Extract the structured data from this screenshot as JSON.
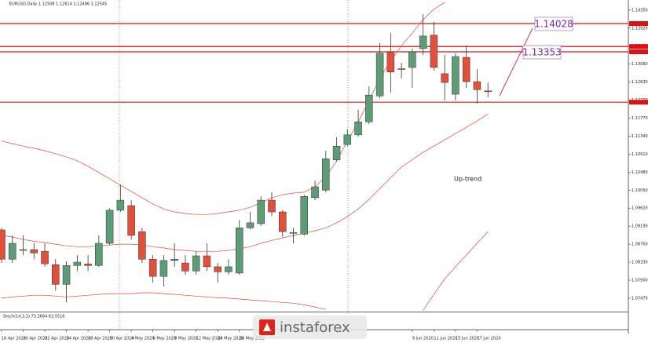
{
  "chart_data": {
    "type": "candlestick",
    "title": "EURUSD,Daily 1.12508 1.12614 1.12496 1.12545",
    "categories": [
      "16 Apr 2020",
      null,
      "20 Apr 2020",
      null,
      "22 Apr 2020",
      null,
      "24 Apr 2020",
      null,
      "28 Apr 2020",
      null,
      "30 Apr 2020",
      null,
      "4 May 2020",
      null,
      "6 May 2020",
      null,
      "8 May 2020",
      null,
      "12 May 2020",
      null,
      "14 May 2020",
      null,
      "18 May 2020",
      null,
      null,
      null,
      null,
      null,
      null,
      null,
      null,
      null,
      null,
      null,
      null,
      null,
      null,
      null,
      "9 Jun 2020",
      null,
      "11 Jun 2020",
      null,
      "15 Jun 2020",
      null,
      "17 Jun 2020",
      null
    ],
    "open": [
      1.091,
      1.084,
      1.0863,
      1.0863,
      1.0859,
      1.0827,
      1.078,
      1.0825,
      1.0829,
      1.0825,
      1.0878,
      1.0957,
      1.0968,
      1.0906,
      1.084,
      1.0799,
      1.0837,
      1.0831,
      1.0812,
      1.0848,
      1.0822,
      1.081,
      1.0807,
      1.0915,
      1.0925,
      1.0981,
      1.0953,
      1.0902,
      1.09,
      1.0987,
      1.1005,
      1.1077,
      1.1114,
      1.1137,
      1.1168,
      1.123,
      1.1335,
      1.1294,
      1.1298,
      1.1343,
      1.1375,
      1.1283,
      1.1234,
      1.1322,
      1.1264,
      1.1242
    ],
    "high": [
      1.0915,
      1.0897,
      1.0897,
      1.0878,
      1.0878,
      1.084,
      1.0835,
      1.085,
      1.085,
      1.0897,
      1.0962,
      1.1018,
      1.0981,
      1.0915,
      1.085,
      1.085,
      1.0878,
      1.085,
      1.0859,
      1.0878,
      1.0831,
      1.084,
      1.0934,
      1.0953,
      1.099,
      1.1,
      1.0957,
      1.0915,
      1.0994,
      1.1028,
      1.1099,
      1.1131,
      1.115,
      1.1197,
      1.1253,
      1.1356,
      1.138,
      1.1309,
      1.1343,
      1.1425,
      1.1407,
      1.1328,
      1.1332,
      1.135,
      1.1294,
      1.1262
    ],
    "low": [
      1.0831,
      1.0831,
      1.085,
      1.084,
      1.0822,
      1.0765,
      1.0737,
      1.0812,
      1.0812,
      1.0822,
      1.0874,
      1.0953,
      1.0887,
      1.0831,
      1.0784,
      1.0775,
      1.0822,
      1.0803,
      1.0803,
      1.0812,
      1.0784,
      1.0803,
      1.0803,
      1.0912,
      1.0919,
      1.0943,
      1.0893,
      1.0878,
      1.0897,
      1.0981,
      1.1,
      1.1073,
      1.111,
      1.1133,
      1.1163,
      1.1225,
      1.1238,
      1.1272,
      1.1249,
      1.1328,
      1.129,
      1.1219,
      1.1219,
      1.1249,
      1.1212,
      1.1227
    ],
    "close": [
      1.084,
      1.0878,
      1.0863,
      1.0855,
      1.0829,
      1.078,
      1.0825,
      1.0833,
      1.0825,
      1.0878,
      1.0957,
      1.0981,
      1.0897,
      1.084,
      1.0799,
      1.0837,
      1.084,
      1.0812,
      1.0848,
      1.0822,
      1.081,
      1.0822,
      1.0915,
      1.0927,
      1.0981,
      1.0953,
      1.0906,
      1.0904,
      1.099,
      1.1013,
      1.108,
      1.111,
      1.1137,
      1.1168,
      1.1232,
      1.1332,
      1.1287,
      1.1295,
      1.1335,
      1.1373,
      1.1298,
      1.1262,
      1.1324,
      1.1264,
      1.1245,
      1.124
    ],
    "up_color": "#5e9c76",
    "down_color": "#e2503c",
    "band_color": "#e8473a",
    "upper_band": [
      1.1122,
      1.1116,
      1.111,
      1.1105,
      1.1099,
      1.1092,
      1.1084,
      1.1075,
      1.1062,
      1.1047,
      1.1032,
      1.1017,
      1.1002,
      1.0987,
      1.0972,
      1.096,
      1.0953,
      1.0949,
      1.0947,
      1.0947,
      1.0949,
      1.0953,
      1.0957,
      1.0964,
      1.0975,
      1.0987,
      1.0994,
      1.0998,
      1.1,
      1.1013,
      1.1037,
      1.1075,
      1.1122,
      1.1168,
      1.1219,
      1.1272,
      1.1313,
      1.135,
      1.138,
      1.1412,
      1.1437,
      1.1453,
      null,
      null,
      null,
      null
    ],
    "middle_band": [
      1.0897,
      1.0893,
      1.0887,
      1.0883,
      1.088,
      1.0876,
      1.0872,
      1.087,
      1.087,
      1.0872,
      1.0874,
      1.0876,
      1.0876,
      1.0874,
      1.087,
      1.0867,
      1.0863,
      1.0861,
      1.0859,
      1.0859,
      1.0859,
      1.0861,
      1.0865,
      1.087,
      1.0878,
      1.0885,
      1.0891,
      1.0897,
      1.0902,
      1.0908,
      1.0915,
      1.0927,
      1.0942,
      1.096,
      1.0983,
      1.1009,
      1.1035,
      1.106,
      1.1078,
      1.1095,
      1.111,
      1.1125,
      1.114,
      1.1155,
      1.117,
      1.1187
    ],
    "lower_band": [
      1.0747,
      1.075,
      1.0752,
      1.0754,
      1.0754,
      1.0752,
      1.075,
      1.0752,
      1.0754,
      1.0756,
      1.0758,
      1.0758,
      1.0758,
      1.076,
      1.076,
      1.0758,
      1.0756,
      1.0754,
      1.0752,
      1.075,
      1.0748,
      1.0747,
      1.0745,
      1.0743,
      1.0741,
      1.0739,
      1.0737,
      1.0735,
      1.0731,
      1.0726,
      1.072,
      null,
      null,
      null,
      null,
      null,
      null,
      null,
      null,
      1.0718,
      1.0756,
      1.0793,
      1.0822,
      1.085,
      1.0878,
      1.0906
    ],
    "ylim": [
      1.0715,
      1.1459
    ],
    "yticks": [
      {
        "value": 1.1435,
        "label": "1.14350"
      },
      {
        "value": 1.1392,
        "label": "1.13920"
      },
      {
        "value": 1.1349,
        "label": "1.13490"
      },
      {
        "value": 1.1306,
        "label": "1.13060"
      },
      {
        "value": 1.1263,
        "label": "1.12630"
      },
      {
        "value": 1.122,
        "label": "1.12200"
      },
      {
        "value": 1.1177,
        "label": "1.11770"
      },
      {
        "value": 1.1134,
        "label": "1.11340"
      },
      {
        "value": 1.1091,
        "label": "1.10910"
      },
      {
        "value": 1.1048,
        "label": "1.10480"
      },
      {
        "value": 1.1005,
        "label": "1.10050"
      },
      {
        "value": 1.0962,
        "label": "1.09620"
      },
      {
        "value": 1.0919,
        "label": "1.09190"
      },
      {
        "value": 1.0876,
        "label": "1.08760"
      },
      {
        "value": 1.0833,
        "label": "1.08330"
      },
      {
        "value": 1.079,
        "label": "1.07900"
      },
      {
        "value": 1.0747,
        "label": "1.07470"
      }
    ],
    "levels": [
      1.14028,
      1.13353
    ],
    "other_levels": [
      1.1348,
      1.1215
    ],
    "level_color": "#e01010",
    "annotation": "Up-trend",
    "indicator_label": "Stoch(14,3,3) 73.3664 63.5516",
    "logo": "instaforex"
  }
}
